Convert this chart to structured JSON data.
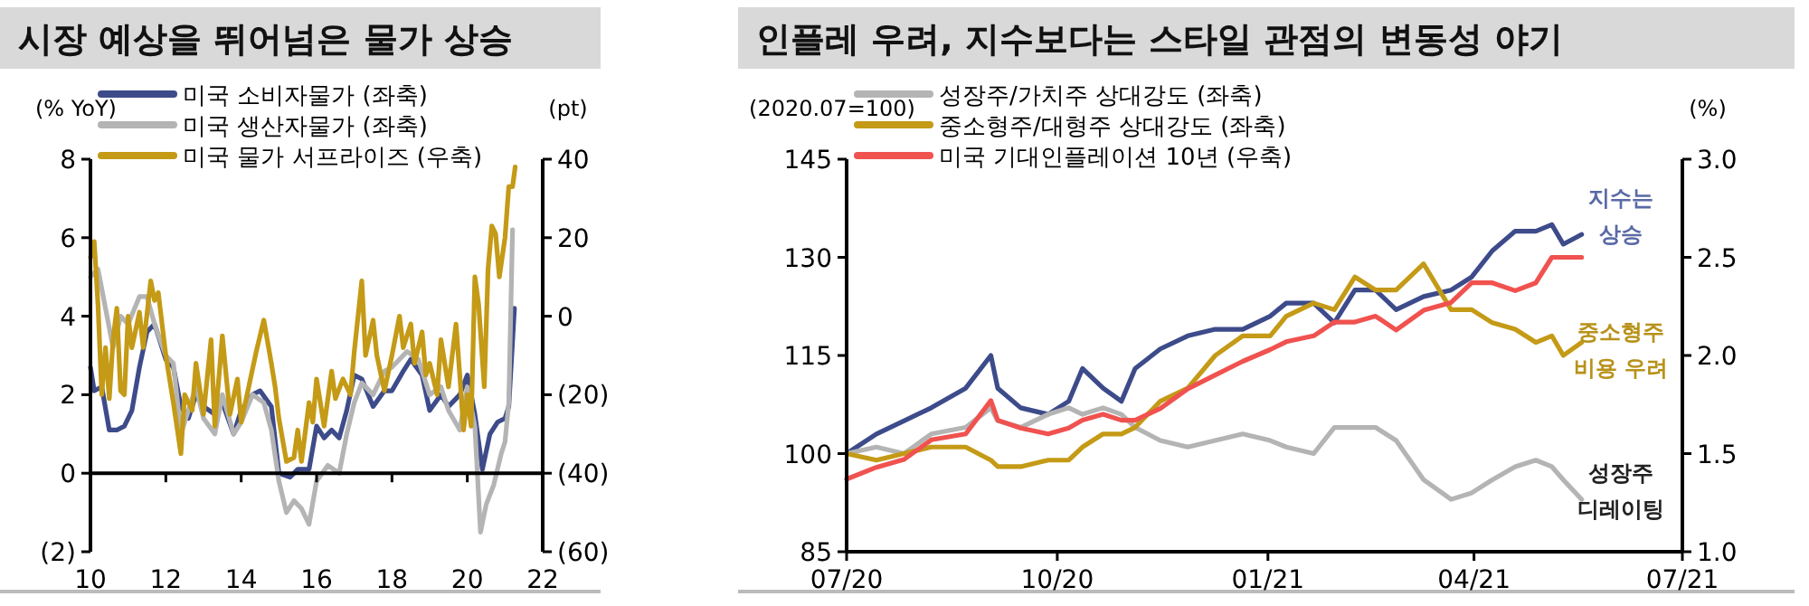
{
  "chart_data": [
    {
      "type": "line",
      "title": "시장 예상을 뛰어넘은 물가 상승",
      "ylabel": "(% YoY)",
      "y2label": "(pt)",
      "xlim": [
        2010,
        2022
      ],
      "xticks": [
        {
          "value": 2010,
          "label": "10"
        },
        {
          "value": 2012,
          "label": "12"
        },
        {
          "value": 2014,
          "label": "14"
        },
        {
          "value": 2016,
          "label": "16"
        },
        {
          "value": 2018,
          "label": "18"
        },
        {
          "value": 2020,
          "label": "20"
        },
        {
          "value": 2022,
          "label": "22"
        }
      ],
      "ylim": [
        -2,
        8
      ],
      "yticks": [
        {
          "value": -2,
          "label": "(2)"
        },
        0,
        2,
        4,
        6,
        8
      ],
      "y2lim": [
        -60,
        40
      ],
      "y2ticks": [
        {
          "value": -60,
          "label": "(60)"
        },
        {
          "value": -40,
          "label": "(40)"
        },
        {
          "value": -20,
          "label": "(20)"
        },
        0,
        20,
        40
      ],
      "legend": "top left",
      "ref_lines": [
        {
          "axis": "y",
          "value": 0,
          "color": "#000000"
        }
      ],
      "series": [
        {
          "name": "미국 소비자물가 (좌축)",
          "color": "#3d4b8a",
          "x": [
            2010.0,
            2010.1,
            2010.3,
            2010.5,
            2010.7,
            2010.9,
            2011.1,
            2011.3,
            2011.5,
            2011.7,
            2011.8,
            2012.0,
            2012.2,
            2012.4,
            2012.6,
            2012.8,
            2013.0,
            2013.3,
            2013.5,
            2013.8,
            2014.0,
            2014.3,
            2014.5,
            2014.8,
            2015.0,
            2015.3,
            2015.5,
            2015.8,
            2016.0,
            2016.2,
            2016.4,
            2016.6,
            2016.8,
            2017.0,
            2017.2,
            2017.5,
            2017.8,
            2018.0,
            2018.3,
            2018.5,
            2018.8,
            2019.0,
            2019.3,
            2019.5,
            2019.8,
            2020.0,
            2020.2,
            2020.4,
            2020.6,
            2020.8,
            2021.0,
            2021.1,
            2021.25
          ],
          "values": [
            2.7,
            2.1,
            2.2,
            1.1,
            1.1,
            1.2,
            1.6,
            2.7,
            3.6,
            3.8,
            3.5,
            2.9,
            2.7,
            1.7,
            1.4,
            2.0,
            1.7,
            1.5,
            1.8,
            1.0,
            1.6,
            2.0,
            2.1,
            1.7,
            0.0,
            -0.1,
            0.1,
            0.1,
            1.2,
            0.9,
            1.1,
            0.9,
            1.6,
            2.5,
            2.4,
            1.7,
            2.1,
            2.1,
            2.6,
            2.9,
            2.5,
            1.6,
            2.0,
            1.7,
            2.0,
            2.5,
            1.5,
            0.1,
            1.0,
            1.3,
            1.4,
            1.7,
            4.2
          ]
        },
        {
          "name": "미국 생산자물가 (좌축)",
          "color": "#b4b4b4",
          "x": [
            2010.0,
            2010.2,
            2010.4,
            2010.6,
            2010.8,
            2011.0,
            2011.3,
            2011.5,
            2011.7,
            2012.0,
            2012.2,
            2012.4,
            2012.6,
            2012.8,
            2013.0,
            2013.3,
            2013.5,
            2013.8,
            2014.0,
            2014.3,
            2014.6,
            2014.8,
            2015.0,
            2015.2,
            2015.4,
            2015.6,
            2015.8,
            2016.0,
            2016.3,
            2016.6,
            2016.8,
            2017.0,
            2017.2,
            2017.5,
            2017.8,
            2018.0,
            2018.4,
            2018.7,
            2019.0,
            2019.3,
            2019.5,
            2019.8,
            2020.0,
            2020.2,
            2020.35,
            2020.5,
            2020.7,
            2020.9,
            2021.0,
            2021.1,
            2021.2
          ],
          "values": [
            5.0,
            5.2,
            4.2,
            3.2,
            4.0,
            3.8,
            4.5,
            4.5,
            3.8,
            3.0,
            2.8,
            1.0,
            1.6,
            2.2,
            1.4,
            1.0,
            2.0,
            1.0,
            1.3,
            2.0,
            1.8,
            1.1,
            -0.2,
            -1.0,
            -0.7,
            -0.9,
            -1.3,
            -0.2,
            0.2,
            0.0,
            1.0,
            1.8,
            2.3,
            2.0,
            2.6,
            2.7,
            3.1,
            2.9,
            2.0,
            2.2,
            1.6,
            1.1,
            2.2,
            1.2,
            -1.5,
            -0.8,
            -0.3,
            0.5,
            0.8,
            1.8,
            6.2
          ]
        },
        {
          "name": "미국 물가 서프라이즈 (우축)",
          "color": "#c49a16",
          "axis": "y2",
          "x": [
            2010.0,
            2010.1,
            2010.2,
            2010.3,
            2010.4,
            2010.5,
            2010.6,
            2010.7,
            2010.8,
            2010.9,
            2011.0,
            2011.1,
            2011.3,
            2011.4,
            2011.6,
            2011.7,
            2011.8,
            2012.0,
            2012.2,
            2012.4,
            2012.5,
            2012.7,
            2012.8,
            2013.0,
            2013.2,
            2013.3,
            2013.5,
            2013.7,
            2013.9,
            2014.0,
            2014.2,
            2014.4,
            2014.6,
            2014.8,
            2014.9,
            2015.0,
            2015.2,
            2015.4,
            2015.5,
            2015.6,
            2015.8,
            2015.9,
            2016.0,
            2016.2,
            2016.4,
            2016.5,
            2016.7,
            2016.9,
            2017.0,
            2017.2,
            2017.3,
            2017.5,
            2017.6,
            2017.8,
            2018.0,
            2018.2,
            2018.3,
            2018.5,
            2018.6,
            2018.8,
            2018.9,
            2019.0,
            2019.2,
            2019.3,
            2019.5,
            2019.7,
            2019.8,
            2019.9,
            2020.0,
            2020.1,
            2020.2,
            2020.3,
            2020.45,
            2020.55,
            2020.65,
            2020.75,
            2020.85,
            2021.0,
            2021.1,
            2021.2,
            2021.27
          ],
          "values": [
            15,
            19,
            3,
            -20,
            -8,
            -21,
            -6,
            2,
            -19,
            -20,
            0,
            -8,
            1,
            -8,
            9,
            4,
            6,
            -10,
            -22,
            -35,
            -20,
            -24,
            -12,
            -25,
            -6,
            -28,
            -5,
            -25,
            -16,
            -27,
            -18,
            -9,
            -1,
            -12,
            -18,
            -26,
            -37,
            -36,
            -29,
            -37,
            -22,
            -27,
            -16,
            -28,
            -14,
            -21,
            -16,
            -20,
            -9,
            9,
            -10,
            -1,
            -10,
            -19,
            -10,
            0,
            -8,
            -2,
            -12,
            -4,
            -15,
            -12,
            -20,
            -6,
            -18,
            -2,
            -15,
            -29,
            -20,
            -28,
            10,
            3,
            -18,
            12,
            23,
            21,
            10,
            20,
            33,
            33,
            38
          ]
        }
      ]
    },
    {
      "type": "line",
      "title": "인플레 우려, 지수보다는 스타일 관점의 변동성 야기",
      "ylabel": "(2020.07=100)",
      "y2label": "(%)",
      "xlim": [
        "2020-07-01",
        "2021-07-01"
      ],
      "xticks": [
        {
          "value": "2020-07-01",
          "label": "07/20"
        },
        {
          "value": "2020-10-01",
          "label": "10/20"
        },
        {
          "value": "2021-01-01",
          "label": "01/21"
        },
        {
          "value": "2021-04-01",
          "label": "04/21"
        },
        {
          "value": "2021-07-01",
          "label": "07/21"
        }
      ],
      "ylim": [
        85,
        145
      ],
      "yticks": [
        85,
        100,
        115,
        130,
        145
      ],
      "y2lim": [
        1.0,
        3.0
      ],
      "y2ticks": [
        {
          "value": 1.0,
          "label": "1.0"
        },
        1.5,
        {
          "value": 2.0,
          "label": "2.0"
        },
        2.5,
        {
          "value": 3.0,
          "label": "3.0"
        }
      ],
      "legend": "top left",
      "grid": false,
      "x": [
        "2020-07-01",
        "2020-07-14",
        "2020-07-26",
        "2020-08-07",
        "2020-08-22",
        "2020-09-02",
        "2020-09-05",
        "2020-09-15",
        "2020-09-27",
        "2020-10-06",
        "2020-10-12",
        "2020-10-21",
        "2020-10-29",
        "2020-11-04",
        "2020-11-15",
        "2020-11-27",
        "2020-12-09",
        "2020-12-21",
        "2021-01-02",
        "2021-01-09",
        "2021-01-21",
        "2021-01-30",
        "2021-02-08",
        "2021-02-17",
        "2021-02-26",
        "2021-03-10",
        "2021-03-22",
        "2021-03-31",
        "2021-04-09",
        "2021-04-19",
        "2021-04-28",
        "2021-05-05",
        "2021-05-10",
        "2021-05-18"
      ],
      "annotations": [
        "지수는\n상승",
        "중소형주\n비용 우려",
        "성장주\n디레이팅"
      ],
      "series": [
        {
          "color": "#3d4b8a",
          "values": [
            100,
            103,
            105,
            107,
            110,
            115,
            110,
            107,
            106,
            108,
            113,
            110,
            108,
            113,
            116,
            118,
            119,
            119,
            121,
            123,
            123,
            120,
            125,
            125,
            122,
            124,
            125,
            127,
            131,
            134,
            134,
            135,
            132,
            133.5
          ]
        },
        {
          "name": "성장주/가치주 상대강도 (좌축)",
          "color": "#b4b4b4",
          "values": [
            100,
            101,
            100,
            103,
            104,
            107,
            105,
            104,
            106,
            107,
            106,
            107,
            106,
            104,
            102,
            101,
            102,
            103,
            102,
            101,
            100,
            104,
            104,
            104,
            102,
            96,
            93,
            94,
            96,
            98,
            99,
            98,
            96,
            93
          ]
        },
        {
          "name": "중소형주/대형주 상대강도 (좌축)",
          "color": "#c49a16",
          "values": [
            100,
            99,
            100,
            101,
            101,
            99,
            98,
            98,
            99,
            99,
            101,
            103,
            103,
            104,
            108,
            110,
            115,
            118,
            118,
            121,
            123,
            122,
            127,
            125,
            125,
            129,
            122,
            122,
            120,
            119,
            117,
            118,
            115,
            117
          ]
        },
        {
          "name": "미국 기대인플레이션 10년 (우축)",
          "color": "#f0524f",
          "axis": "y2",
          "values": [
            1.37,
            1.43,
            1.47,
            1.57,
            1.6,
            1.77,
            1.67,
            1.63,
            1.6,
            1.63,
            1.67,
            1.7,
            1.67,
            1.67,
            1.73,
            1.83,
            1.9,
            1.97,
            2.03,
            2.07,
            2.1,
            2.17,
            2.17,
            2.2,
            2.13,
            2.23,
            2.27,
            2.37,
            2.37,
            2.33,
            2.37,
            2.5,
            2.5,
            2.5
          ]
        }
      ]
    }
  ]
}
